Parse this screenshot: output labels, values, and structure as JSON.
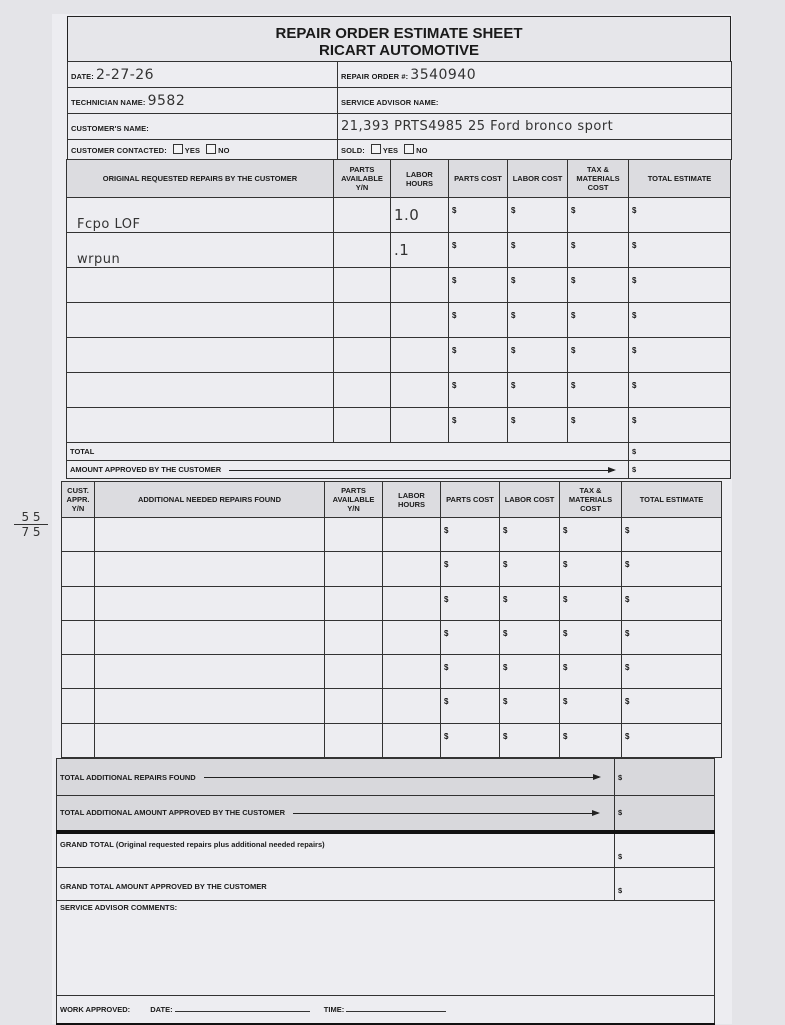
{
  "header": {
    "title": "REPAIR ORDER ESTIMATE SHEET",
    "company": "RICART AUTOMOTIVE"
  },
  "fields": {
    "date_label": "DATE:",
    "date_value": "2-27-26",
    "repair_order_label": "REPAIR ORDER #:",
    "repair_order_value": "3540940",
    "technician_label": "TECHNICIAN NAME:",
    "technician_value": "9582",
    "service_advisor_label": "SERVICE ADVISOR NAME:",
    "service_advisor_value": "",
    "customer_label": "CUSTOMER'S NAME:",
    "customer_value": "",
    "vehicle_note": "21,393  PRTS4985  25  Ford bronco sport",
    "contacted_label": "CUSTOMER CONTACTED:",
    "sold_label": "SOLD:",
    "yes": "YES",
    "no": "NO"
  },
  "currency": "$",
  "original_table": {
    "headers": [
      "ORIGINAL REQUESTED REPAIRS BY THE CUSTOMER",
      "PARTS AVAILABLE Y/N",
      "LABOR HOURS",
      "PARTS COST",
      "LABOR COST",
      "TAX & MATERIALS COST",
      "TOTAL ESTIMATE"
    ],
    "rows": [
      {
        "description": "Fcpo LOF",
        "parts_available": "",
        "labor_hours": "1.0"
      },
      {
        "description": "wrpun",
        "parts_available": "",
        "labor_hours": ".1"
      },
      {
        "description": "",
        "parts_available": "",
        "labor_hours": ""
      },
      {
        "description": "",
        "parts_available": "",
        "labor_hours": ""
      },
      {
        "description": "",
        "parts_available": "",
        "labor_hours": ""
      },
      {
        "description": "",
        "parts_available": "",
        "labor_hours": ""
      },
      {
        "description": "",
        "parts_available": "",
        "labor_hours": ""
      }
    ],
    "total_label": "TOTAL",
    "approved_label": "AMOUNT APPROVED BY THE CUSTOMER"
  },
  "additional_table": {
    "headers": [
      "CUST. APPR. Y/N",
      "ADDITIONAL NEEDED REPAIRS FOUND",
      "PARTS AVAILABLE Y/N",
      "LABOR HOURS",
      "PARTS COST",
      "LABOR COST",
      "TAX & MATERIALS COST",
      "TOTAL ESTIMATE"
    ],
    "rows": [
      {},
      {},
      {},
      {},
      {},
      {},
      {}
    ]
  },
  "totals": {
    "total_additional_label": "TOTAL ADDITIONAL REPAIRS FOUND",
    "total_additional_approved_label": "TOTAL ADDITIONAL AMOUNT APPROVED BY THE CUSTOMER",
    "grand_total_label": "GRAND TOTAL (Original requested repairs plus additional needed repairs)",
    "grand_total_approved_label": "GRAND TOTAL AMOUNT APPROVED BY THE CUSTOMER",
    "comments_label": "SERVICE ADVISOR COMMENTS:",
    "work_approved_label": "WORK APPROVED:",
    "date_label": "DATE:",
    "time_label": "TIME:"
  },
  "margin_note": [
    "5 5",
    "7 5"
  ]
}
